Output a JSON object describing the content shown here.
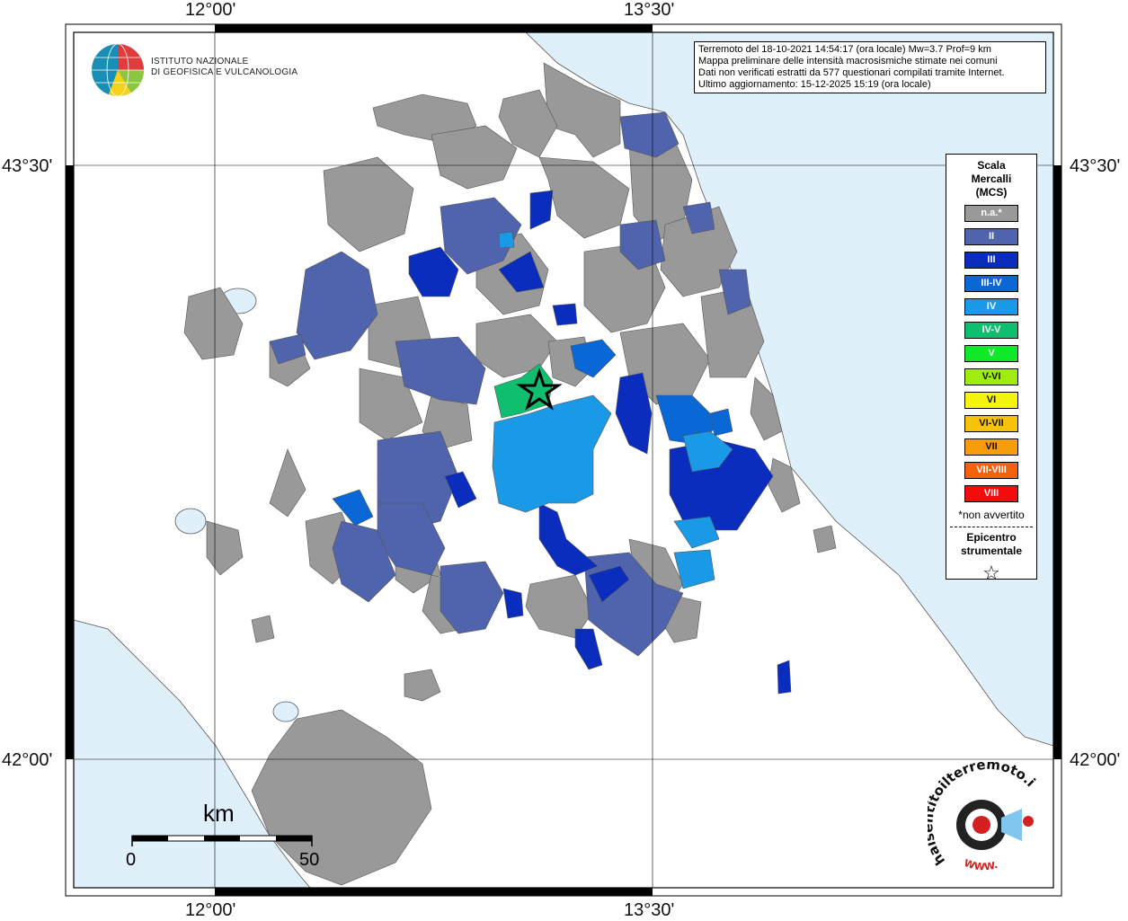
{
  "coords": {
    "lon_left": "12°00'",
    "lon_right": "13°30'",
    "lat_top": "43°30'",
    "lat_bottom": "42°00'"
  },
  "info": {
    "line1": "Terremoto del 18-10-2021 14:54:17 (ora locale) Mw=3.7 Prof=9 km",
    "line2": "Mappa preliminare delle intensità macrosismiche stimate nei comuni",
    "line3": "Dati non verificati estratti da 577 questionari compilati tramite Internet.",
    "line4": "Ultimo aggiornamento: 15-12-2025 15:19 (ora locale)"
  },
  "ingv": {
    "line1": "ISTITUTO NAZIONALE",
    "line2": "DI GEOFISICA E VULCANOLOGIA"
  },
  "legend": {
    "title1": "Scala",
    "title2": "Mercalli",
    "title3": "(MCS)",
    "items": [
      {
        "label": "n.a.*",
        "color": "#999999"
      },
      {
        "label": "II",
        "color": "#4f64ad"
      },
      {
        "label": "III",
        "color": "#0a2dbd"
      },
      {
        "label": "III-IV",
        "color": "#0a67d6"
      },
      {
        "label": "IV",
        "color": "#1a9ae6"
      },
      {
        "label": "IV-V",
        "color": "#0fbf6f"
      },
      {
        "label": "V",
        "color": "#10e82a"
      },
      {
        "label": "V-VI",
        "color": "#9fec0f"
      },
      {
        "label": "VI",
        "color": "#f5f50c"
      },
      {
        "label": "VI-VII",
        "color": "#f7c20c"
      },
      {
        "label": "VII",
        "color": "#f79c0c"
      },
      {
        "label": "VII-VIII",
        "color": "#f5620c"
      },
      {
        "label": "VIII",
        "color": "#f40c0c"
      }
    ],
    "note": "*non avvertito",
    "epi1": "Epicentro",
    "epi2": "strumentale",
    "star": "☆"
  },
  "scale": {
    "unit": "km",
    "min": "0",
    "max": "50"
  },
  "hsit": {
    "brand": "haisentitoilterremoto.it",
    "url": "WWW."
  },
  "colors": {
    "sea": "#dff0fb",
    "land": "#ffffff",
    "na": "#999999",
    "ii": "#4f64ad",
    "iii": "#0a2dbd",
    "iiiiv": "#0a67d6",
    "iv": "#1a9ae6",
    "ivv": "#0fbf6f"
  }
}
